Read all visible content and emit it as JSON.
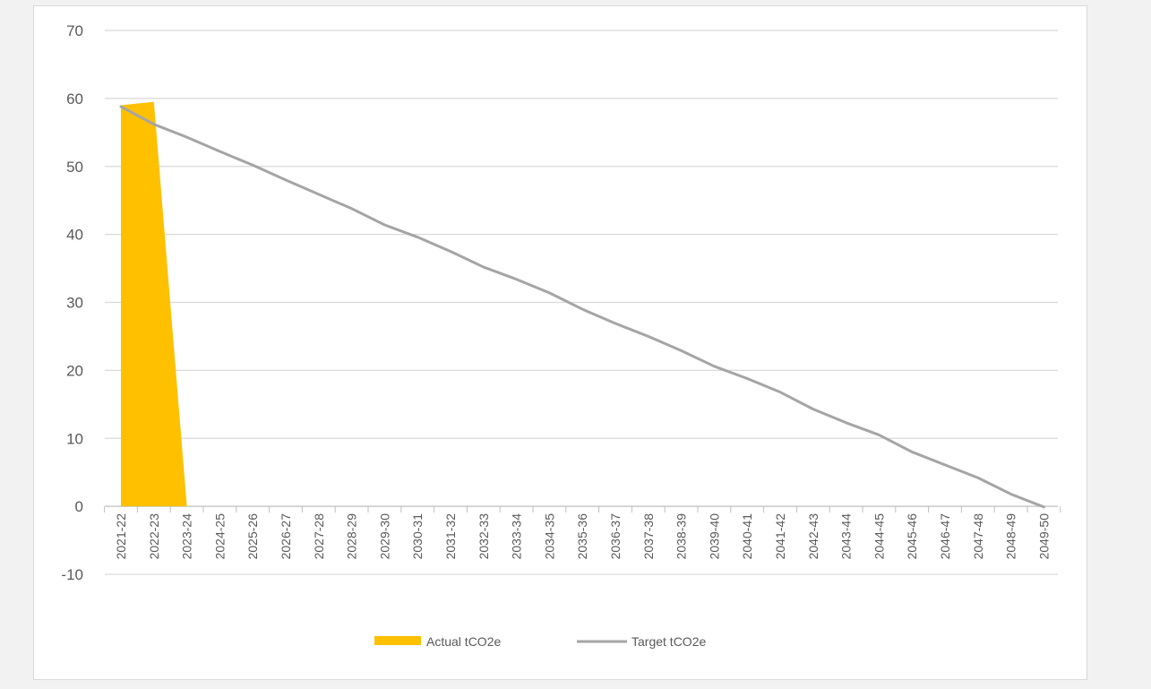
{
  "colors": {
    "actual": "#FFC000",
    "target": "#A5A5A5",
    "grid": "#D9D9D9",
    "axis": "#BFBFBF",
    "text": "#595959"
  },
  "chart_data": {
    "type": "area",
    "title": "",
    "xlabel": "",
    "ylabel": "",
    "ylim": [
      -10,
      70
    ],
    "yticks": [
      -10,
      0,
      10,
      20,
      30,
      40,
      50,
      60,
      70
    ],
    "grid": true,
    "legend_position": "bottom",
    "categories": [
      "2021-22",
      "2022-23",
      "2023-24",
      "2024-25",
      "2025-26",
      "2026-27",
      "2027-28",
      "2028-29",
      "2029-30",
      "2030-31",
      "2031-32",
      "2032-33",
      "2033-34",
      "2034-35",
      "2035-36",
      "2036-37",
      "2037-38",
      "2038-39",
      "2039-40",
      "2040-41",
      "2041-42",
      "2042-43",
      "2043-44",
      "2044-45",
      "2045-46",
      "2046-47",
      "2047-48",
      "2048-49",
      "2049-50"
    ],
    "series": [
      {
        "name": "Actual tCO2e",
        "type": "area",
        "color": "#FFC000",
        "values": [
          59,
          59.5,
          0,
          null,
          null,
          null,
          null,
          null,
          null,
          null,
          null,
          null,
          null,
          null,
          null,
          null,
          null,
          null,
          null,
          null,
          null,
          null,
          null,
          null,
          null,
          null,
          null,
          null,
          null
        ]
      },
      {
        "name": "Target tCO2e",
        "type": "line",
        "color": "#A5A5A5",
        "values": [
          58.8,
          56.2,
          54.3,
          52.2,
          50.2,
          48.0,
          45.9,
          43.8,
          41.4,
          39.6,
          37.5,
          35.2,
          33.4,
          31.4,
          29.0,
          26.9,
          25.0,
          22.9,
          20.6,
          18.8,
          16.8,
          14.3,
          12.3,
          10.5,
          8.0,
          6.1,
          4.2,
          1.8,
          -0.1
        ]
      }
    ]
  }
}
